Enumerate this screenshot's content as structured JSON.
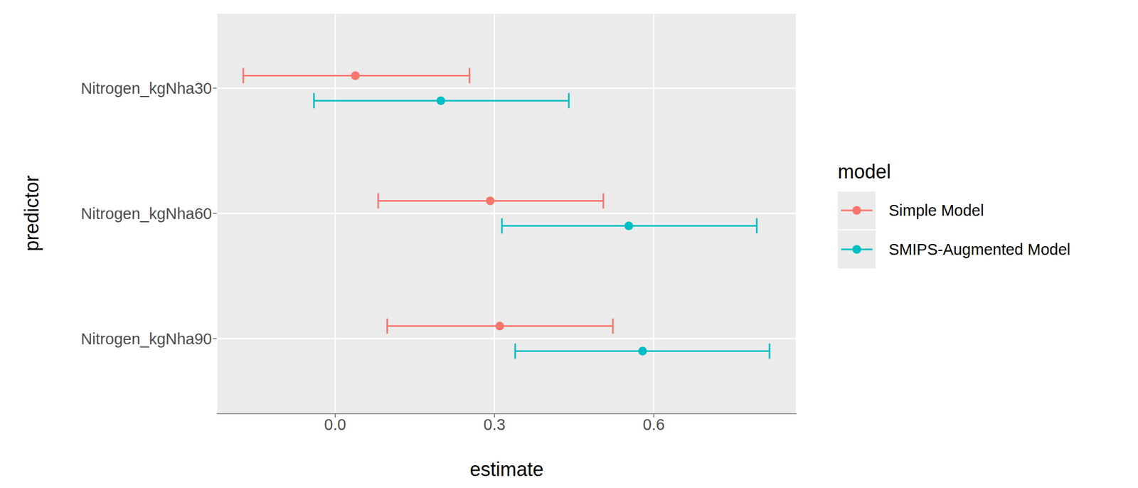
{
  "chart_data": {
    "type": "errorbar",
    "x_label": "estimate",
    "y_label": "predictor",
    "legend_title": "model",
    "legend": "right",
    "grid": true,
    "orientation": "horizontal",
    "categories": [
      "Nitrogen_kgNha30",
      "Nitrogen_kgNha60",
      "Nitrogen_kgNha90"
    ],
    "xlim": [
      -0.223,
      0.869
    ],
    "xticks": [
      {
        "value": 0,
        "label": "0.0"
      },
      0.3,
      0.6
    ],
    "series": [
      {
        "name": "Simple Model",
        "color": "#F8766D",
        "marker": "circle",
        "values": [
          0.038,
          0.292,
          0.31
        ],
        "lower": [
          -0.173,
          0.081,
          0.098
        ],
        "upper": [
          0.253,
          0.505,
          0.523
        ]
      },
      {
        "name": "SMIPS-Augmented Model",
        "color": "#00BFC4",
        "marker": "circle",
        "values": [
          0.199,
          0.553,
          0.579
        ],
        "lower": [
          -0.04,
          0.314,
          0.339
        ],
        "upper": [
          0.44,
          0.794,
          0.818
        ]
      }
    ]
  }
}
